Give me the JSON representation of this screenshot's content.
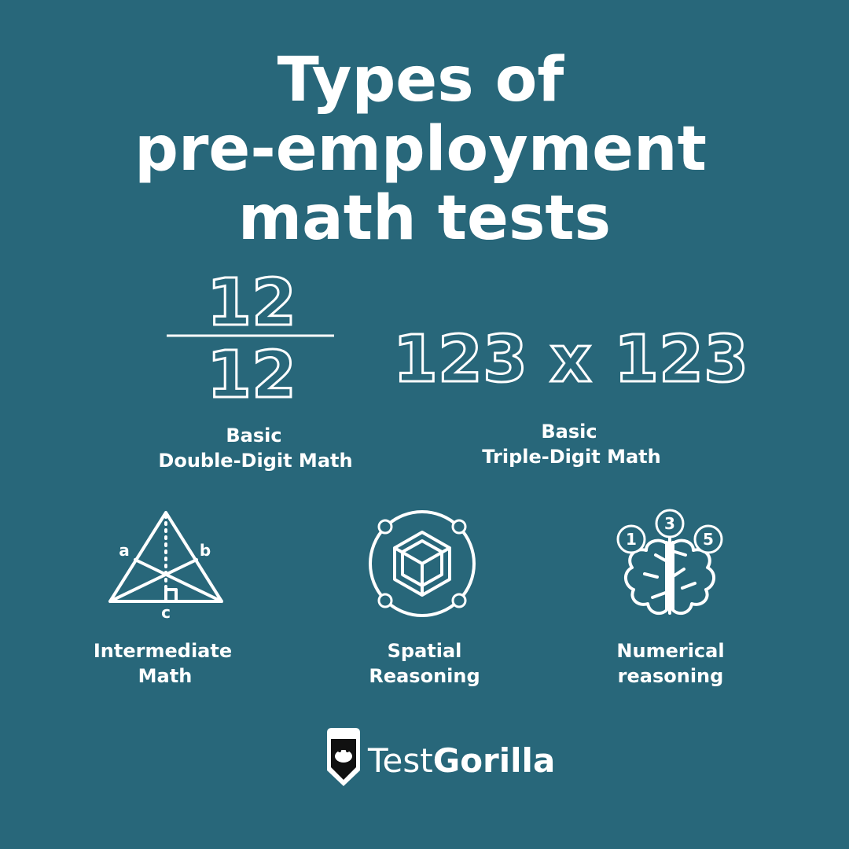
{
  "title": {
    "lines": [
      "Types of",
      "pre-employment",
      "math tests"
    ]
  },
  "fraction": {
    "numerator": "12",
    "denominator": "12"
  },
  "multiplication": "123 x 123",
  "triangle": {
    "a": "a",
    "b": "b",
    "c": "c"
  },
  "brain": {
    "numbers": [
      "1",
      "3",
      "5"
    ]
  },
  "labels": [
    [
      "Basic",
      "Double-Digit Math"
    ],
    [
      "Basic",
      "Triple-Digit Math"
    ],
    [
      "Intermediate",
      "Math"
    ],
    [
      "Spatial",
      "Reasoning"
    ],
    [
      "Numerical",
      "reasoning"
    ]
  ],
  "logo": {
    "regular": "Test",
    "bold": "Gorilla"
  }
}
